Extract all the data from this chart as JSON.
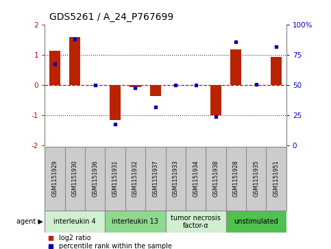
{
  "title": "GDS5261 / A_24_P767699",
  "samples": [
    "GSM1151929",
    "GSM1151930",
    "GSM1151936",
    "GSM1151931",
    "GSM1151932",
    "GSM1151937",
    "GSM1151933",
    "GSM1151934",
    "GSM1151938",
    "GSM1151928",
    "GSM1151935",
    "GSM1151951"
  ],
  "log2_ratio": [
    1.15,
    1.6,
    0.0,
    -1.15,
    -0.05,
    -0.35,
    0.0,
    0.0,
    -1.0,
    1.2,
    0.0,
    0.95
  ],
  "percentile": [
    68,
    88,
    50,
    18,
    48,
    32,
    50,
    50,
    24,
    86,
    51,
    82
  ],
  "agents": [
    {
      "label": "interleukin 4",
      "start": 0,
      "end": 3,
      "color": "#d0f0d0"
    },
    {
      "label": "interleukin 13",
      "start": 3,
      "end": 6,
      "color": "#90d890"
    },
    {
      "label": "tumor necrosis\nfactor-α",
      "start": 6,
      "end": 9,
      "color": "#d0f0d0"
    },
    {
      "label": "unstimulated",
      "start": 9,
      "end": 12,
      "color": "#50c050"
    }
  ],
  "ylim": [
    -2,
    2
  ],
  "y2lim": [
    0,
    100
  ],
  "yticks_left": [
    -2,
    -1,
    0,
    1,
    2
  ],
  "yticks_right": [
    0,
    25,
    50,
    75,
    100
  ],
  "bar_color": "#bb2200",
  "dot_color": "#0000bb",
  "hline_color": "#cc0000",
  "grid_color": "#333333",
  "bg_color": "#ffffff",
  "cell_color": "#cccccc",
  "cell_border": "#888888",
  "legend_items": [
    {
      "label": "log2 ratio",
      "color": "#bb2200",
      "marker": "s"
    },
    {
      "label": "percentile rank within the sample",
      "color": "#0000bb",
      "marker": "s"
    }
  ]
}
